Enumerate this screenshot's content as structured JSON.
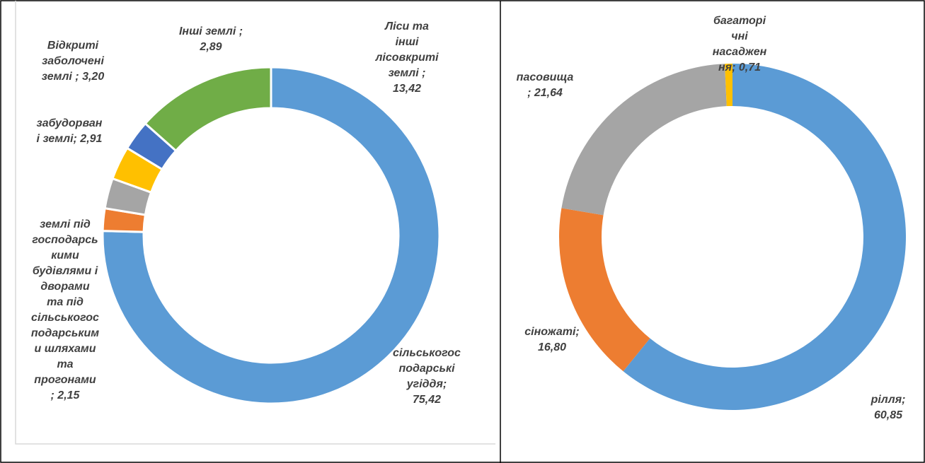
{
  "chart_data": [
    {
      "type": "donut",
      "labels": [
        [
          "сільськогос",
          "подарські",
          "угіддя;",
          "75,42"
        ],
        [
          "землі під",
          "господарсь",
          "кими",
          "будівлями і",
          "дворами",
          "та під",
          "сільськогос",
          "подарським",
          "и шляхами",
          "та",
          "прогонами",
          "; 2,15"
        ],
        [
          "забудорван",
          "і землі; 2,91"
        ],
        [
          "Відкриті",
          "заболочені",
          "землі ; 3,20"
        ],
        [
          "Інші землі ;",
          "2,89"
        ],
        [
          "Ліси та",
          "інші",
          "лісовкриті",
          "землі ;",
          "13,42"
        ]
      ],
      "values": [
        75.42,
        2.15,
        2.91,
        3.2,
        2.89,
        13.42
      ],
      "colors": [
        "#5b9bd5",
        "#ed7d31",
        "#a5a5a5",
        "#ffc000",
        "#4472c4",
        "#70ad47"
      ]
    },
    {
      "type": "donut",
      "labels": [
        [
          "рілля;",
          "60,85"
        ],
        [
          "сіножаті;",
          "16,80"
        ],
        [
          "пасовища",
          "; 21,64"
        ],
        [
          "багаторі",
          "чні",
          "насаджен",
          "ня; 0,71"
        ]
      ],
      "values": [
        60.85,
        16.8,
        21.64,
        0.71
      ],
      "colors": [
        "#5b9bd5",
        "#ed7d31",
        "#a5a5a5",
        "#ffc000"
      ]
    }
  ]
}
